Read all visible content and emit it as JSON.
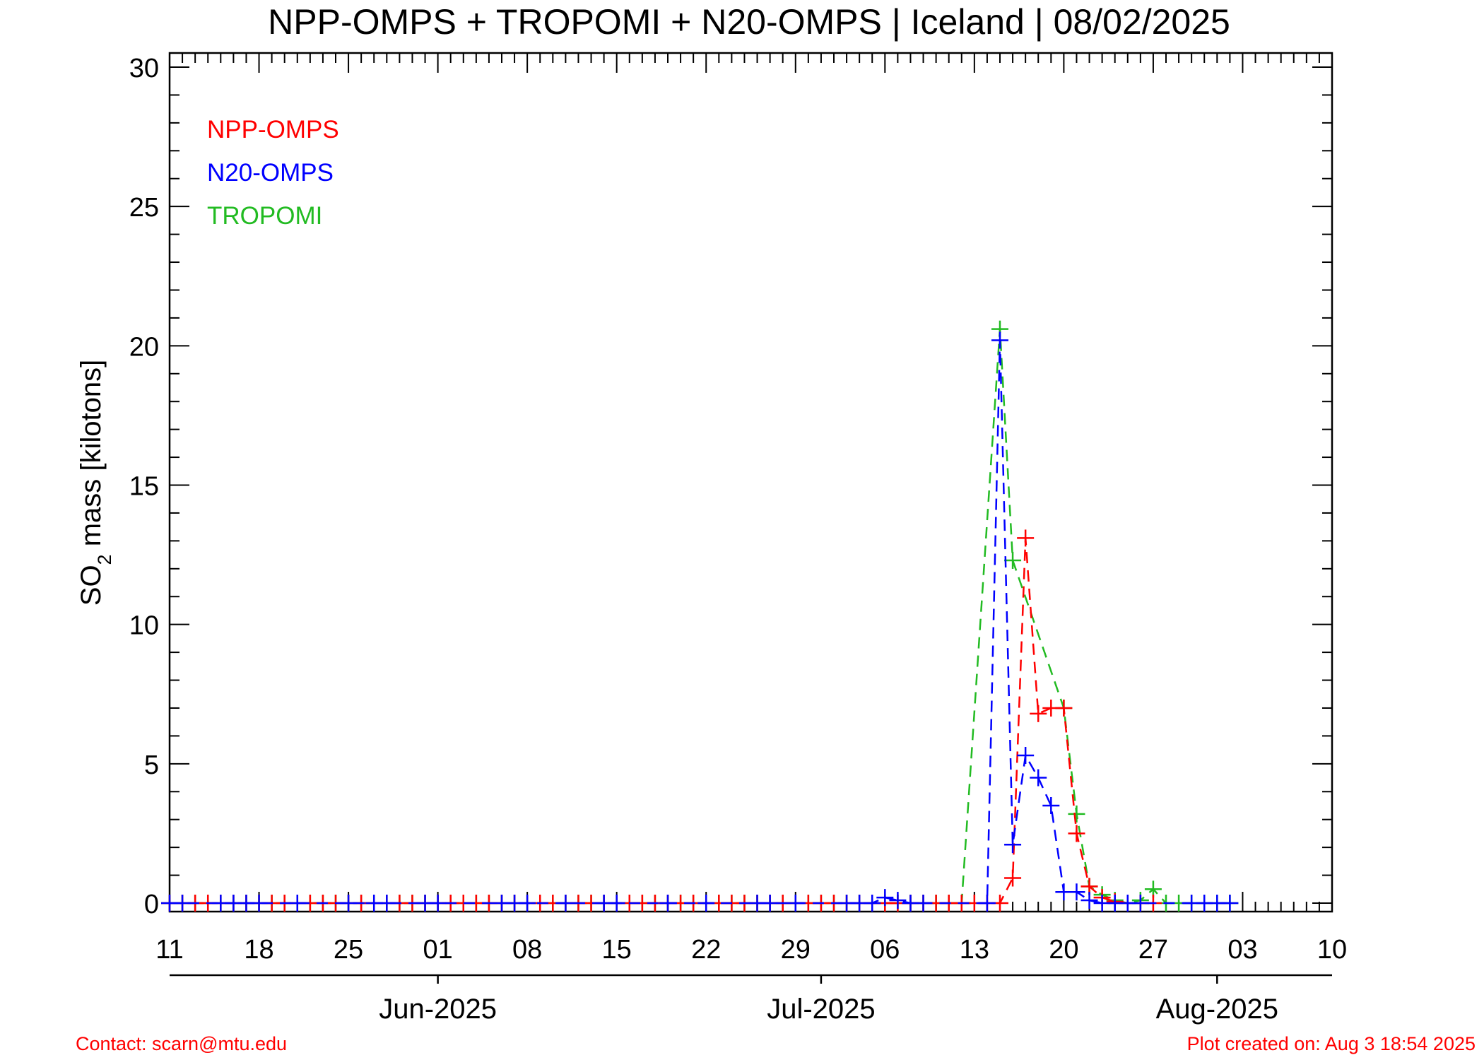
{
  "colors": {
    "npp": "#ff0000",
    "n20": "#0000ff",
    "tropomi": "#22bb22",
    "axis": "#000000",
    "footer": "#ff0000"
  },
  "footer": {
    "contact": "Contact: scarn@mtu.edu",
    "created": "Plot created on: Aug  3 18:54 2025"
  },
  "chart_data": {
    "type": "line",
    "title": "NPP-OMPS + TROPOMI + N20-OMPS | Iceland | 08/02/2025",
    "ylabel_main": "SO",
    "ylabel_sub": "2",
    "ylabel_rest": " mass [kilotons]",
    "ylim": [
      0,
      30
    ],
    "yticks": [
      0,
      5,
      10,
      15,
      20,
      25,
      30
    ],
    "x_start": "2025-05-11",
    "x_end": "2025-08-10",
    "xticks": [
      {
        "date": "2025-05-11",
        "label": "11"
      },
      {
        "date": "2025-05-18",
        "label": "18"
      },
      {
        "date": "2025-05-25",
        "label": "25"
      },
      {
        "date": "2025-06-01",
        "label": "01"
      },
      {
        "date": "2025-06-08",
        "label": "08"
      },
      {
        "date": "2025-06-15",
        "label": "15"
      },
      {
        "date": "2025-06-22",
        "label": "22"
      },
      {
        "date": "2025-06-29",
        "label": "29"
      },
      {
        "date": "2025-07-06",
        "label": "06"
      },
      {
        "date": "2025-07-13",
        "label": "13"
      },
      {
        "date": "2025-07-20",
        "label": "20"
      },
      {
        "date": "2025-07-27",
        "label": "27"
      },
      {
        "date": "2025-08-03",
        "label": "03"
      },
      {
        "date": "2025-08-10",
        "label": "10"
      }
    ],
    "months": [
      {
        "date": "2025-06-01",
        "label": "Jun-2025"
      },
      {
        "date": "2025-07-01",
        "label": "Jul-2025"
      },
      {
        "date": "2025-08-01",
        "label": "Aug-2025"
      }
    ],
    "legend": [
      {
        "label": "NPP-OMPS",
        "color": "#ff0000"
      },
      {
        "label": "N20-OMPS",
        "color": "#0000ff"
      },
      {
        "label": "TROPOMI",
        "color": "#22bb22"
      }
    ],
    "series": [
      {
        "name": "NPP-OMPS",
        "color": "#ff0000",
        "x": [
          "2025-05-11",
          "2025-05-12",
          "2025-05-13",
          "2025-05-14",
          "2025-05-15",
          "2025-05-16",
          "2025-05-17",
          "2025-05-18",
          "2025-05-19",
          "2025-05-20",
          "2025-05-21",
          "2025-05-22",
          "2025-05-23",
          "2025-05-24",
          "2025-05-25",
          "2025-05-26",
          "2025-05-27",
          "2025-05-28",
          "2025-05-29",
          "2025-05-30",
          "2025-05-31",
          "2025-06-01",
          "2025-06-02",
          "2025-06-03",
          "2025-06-04",
          "2025-06-05",
          "2025-06-06",
          "2025-06-07",
          "2025-06-08",
          "2025-06-09",
          "2025-06-10",
          "2025-06-11",
          "2025-06-12",
          "2025-06-13",
          "2025-06-14",
          "2025-06-15",
          "2025-06-16",
          "2025-06-17",
          "2025-06-18",
          "2025-06-19",
          "2025-06-20",
          "2025-06-21",
          "2025-06-22",
          "2025-06-23",
          "2025-06-24",
          "2025-06-25",
          "2025-06-26",
          "2025-06-27",
          "2025-06-28",
          "2025-06-29",
          "2025-06-30",
          "2025-07-01",
          "2025-07-02",
          "2025-07-03",
          "2025-07-04",
          "2025-07-05",
          "2025-07-06",
          "2025-07-07",
          "2025-07-08",
          "2025-07-09",
          "2025-07-10",
          "2025-07-11",
          "2025-07-12",
          "2025-07-13",
          "2025-07-14",
          "2025-07-15",
          "2025-07-16",
          "2025-07-17",
          "2025-07-18",
          "2025-07-19",
          "2025-07-20",
          "2025-07-21",
          "2025-07-22",
          "2025-07-23",
          "2025-07-24",
          "2025-07-25",
          "2025-07-26",
          "2025-07-27"
        ],
        "values": [
          0,
          0,
          0,
          0,
          0,
          0,
          0,
          0,
          0,
          0,
          0,
          0,
          0,
          0,
          0,
          0,
          0,
          0,
          0,
          0,
          0,
          0,
          0,
          0,
          0,
          0,
          0,
          0,
          0,
          0,
          0,
          0,
          0,
          0,
          0,
          0,
          0,
          0,
          0,
          0,
          0,
          0,
          0,
          0,
          0,
          0,
          0,
          0,
          0,
          0,
          0,
          0,
          0,
          0,
          0,
          0,
          0,
          0,
          0,
          0,
          0,
          0,
          0,
          0,
          0,
          0,
          0.9,
          13.1,
          6.8,
          7.0,
          7.0,
          2.5,
          0.6,
          0.2,
          0.05,
          0,
          0,
          0
        ]
      },
      {
        "name": "N20-OMPS",
        "color": "#0000ff",
        "x": [
          "2025-05-11",
          "2025-05-12",
          "2025-05-15",
          "2025-05-16",
          "2025-05-17",
          "2025-05-18",
          "2025-05-21",
          "2025-05-25",
          "2025-05-27",
          "2025-05-28",
          "2025-05-31",
          "2025-06-01",
          "2025-06-06",
          "2025-06-07",
          "2025-06-08",
          "2025-06-11",
          "2025-06-14",
          "2025-06-15",
          "2025-06-19",
          "2025-06-22",
          "2025-06-26",
          "2025-06-27",
          "2025-06-29",
          "2025-07-03",
          "2025-07-04",
          "2025-07-05",
          "2025-07-06",
          "2025-07-07",
          "2025-07-08",
          "2025-07-09",
          "2025-07-14",
          "2025-07-15",
          "2025-07-16",
          "2025-07-17",
          "2025-07-18",
          "2025-07-19",
          "2025-07-20",
          "2025-07-21",
          "2025-07-22",
          "2025-07-23",
          "2025-07-24",
          "2025-07-25",
          "2025-07-26",
          "2025-07-30",
          "2025-07-31",
          "2025-08-01",
          "2025-08-02"
        ],
        "values": [
          0,
          0,
          0,
          0,
          0,
          0,
          0,
          0,
          0,
          0,
          0,
          0,
          0,
          0,
          0,
          0,
          0,
          0,
          0,
          0,
          0,
          0,
          0,
          0,
          0,
          0,
          0.2,
          0.1,
          0,
          0,
          0,
          20.2,
          2.1,
          5.3,
          4.5,
          3.5,
          0.4,
          0.4,
          0.1,
          0,
          0,
          0,
          0,
          0,
          0,
          0,
          0
        ]
      },
      {
        "name": "TROPOMI",
        "color": "#22bb22",
        "x": [
          "2025-05-11",
          "2025-05-12",
          "2025-05-13",
          "2025-05-14",
          "2025-05-15",
          "2025-05-16",
          "2025-05-17",
          "2025-05-18",
          "2025-05-19",
          "2025-05-20",
          "2025-05-21",
          "2025-05-22",
          "2025-05-23",
          "2025-05-24",
          "2025-05-25",
          "2025-05-26",
          "2025-05-27",
          "2025-05-28",
          "2025-05-29",
          "2025-05-30",
          "2025-05-31",
          "2025-06-01",
          "2025-06-02",
          "2025-06-03",
          "2025-06-04",
          "2025-06-05",
          "2025-06-06",
          "2025-06-07",
          "2025-06-08",
          "2025-06-09",
          "2025-06-10",
          "2025-06-11",
          "2025-06-12",
          "2025-06-13",
          "2025-06-14",
          "2025-06-15",
          "2025-06-16",
          "2025-06-17",
          "2025-06-18",
          "2025-06-19",
          "2025-06-20",
          "2025-06-21",
          "2025-06-22",
          "2025-06-23",
          "2025-06-24",
          "2025-06-25",
          "2025-06-26",
          "2025-06-27",
          "2025-06-28",
          "2025-06-29",
          "2025-06-30",
          "2025-07-01",
          "2025-07-02",
          "2025-07-03",
          "2025-07-04",
          "2025-07-05",
          "2025-07-06",
          "2025-07-07",
          "2025-07-08",
          "2025-07-09",
          "2025-07-10",
          "2025-07-11",
          "2025-07-12",
          "2025-07-15",
          "2025-07-16",
          "2025-07-20",
          "2025-07-21",
          "2025-07-22",
          "2025-07-23",
          "2025-07-24",
          "2025-07-25",
          "2025-07-26",
          "2025-07-27",
          "2025-07-28",
          "2025-07-29",
          "2025-07-30",
          "2025-07-31",
          "2025-08-01",
          "2025-08-02"
        ],
        "values": [
          0,
          0,
          0,
          0,
          0,
          0,
          0,
          0,
          0,
          0,
          0,
          0,
          0,
          0,
          0,
          0,
          0,
          0,
          0,
          0,
          0,
          0,
          0,
          0,
          0,
          0,
          0,
          0,
          0,
          0,
          0,
          0,
          0,
          0,
          0,
          0,
          0,
          0,
          0,
          0,
          0,
          0,
          0,
          0,
          0,
          0,
          0,
          0,
          0,
          0,
          0,
          0,
          0,
          0,
          0,
          0,
          0,
          0,
          0,
          0,
          0,
          0,
          0,
          20.6,
          12.3,
          7.0,
          3.2,
          0.6,
          0.3,
          0.1,
          0,
          0.1,
          0.5,
          0,
          0,
          0,
          0,
          0,
          0
        ]
      }
    ]
  }
}
